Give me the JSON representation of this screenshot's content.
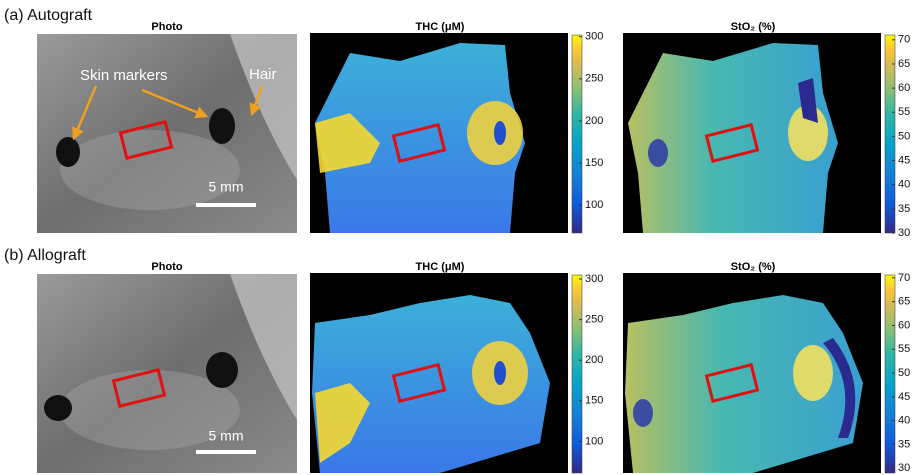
{
  "panels": [
    {
      "label": "(a) Autograft",
      "photo_title": "Photo",
      "annotations": [
        "Skin markers",
        "Hair"
      ],
      "scale_bar": "5 mm",
      "thc": {
        "title": "THC (μM)",
        "clim": [
          67,
          302
        ],
        "ticks": [
          100,
          150,
          200,
          250,
          300
        ]
      },
      "sto2": {
        "title": "StO₂ (%)",
        "clim": [
          30,
          71
        ],
        "ticks": [
          30,
          35,
          40,
          45,
          50,
          55,
          60,
          65,
          70
        ]
      }
    },
    {
      "label": "(b) Allograft",
      "photo_title": "Photo",
      "scale_bar": "5 mm",
      "thc": {
        "title": "THC (μM)",
        "clim": [
          61,
          305
        ],
        "ticks": [
          100,
          150,
          200,
          250,
          300
        ]
      },
      "sto2": {
        "title": "StO₂ (%)",
        "clim": [
          29,
          70.6
        ],
        "ticks": [
          30,
          35,
          40,
          45,
          50,
          55,
          60,
          65,
          70
        ]
      }
    }
  ]
}
